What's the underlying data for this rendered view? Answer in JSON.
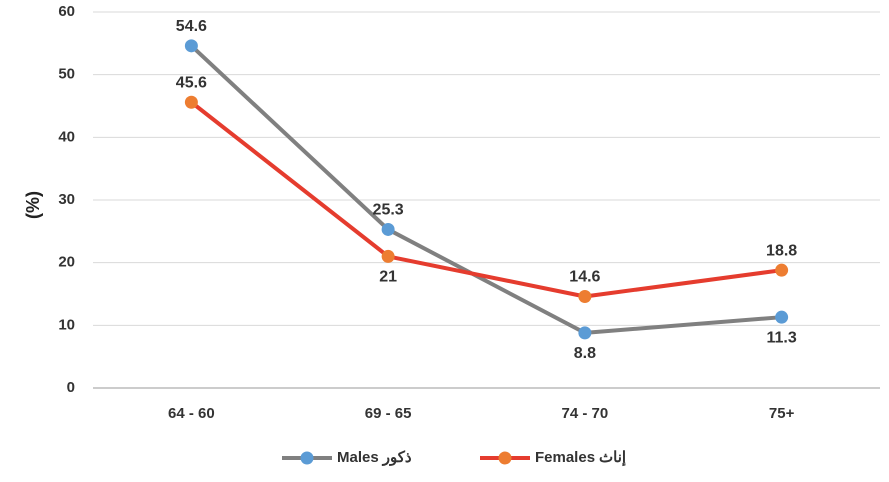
{
  "chart_data": {
    "type": "line",
    "title": "",
    "xlabel": "",
    "ylabel": "(%)",
    "ylim": [
      0,
      60
    ],
    "yticks": [
      0,
      10,
      20,
      30,
      40,
      50,
      60
    ],
    "grid": true,
    "legend_position": "bottom",
    "categories": [
      "64 - 60",
      "69 - 65",
      "74 - 70",
      "75+"
    ],
    "series": [
      {
        "name": "Males",
        "name_ar": "ذكور",
        "values": [
          54.6,
          25.3,
          8.8,
          11.3
        ],
        "line_color": "#808080",
        "marker_color": "#5B9BD5",
        "labels": [
          "54.6",
          "25.3",
          "8.8",
          "11.3"
        ],
        "label_positions": [
          "above",
          "above",
          "below",
          "below"
        ]
      },
      {
        "name": "Females",
        "name_ar": "إناث",
        "values": [
          45.6,
          21,
          14.6,
          18.8
        ],
        "line_color": "#E53C2E",
        "marker_color": "#ED7D31",
        "labels": [
          "45.6",
          "21",
          "14.6",
          "18.8"
        ],
        "label_positions": [
          "above",
          "below",
          "above",
          "above"
        ]
      }
    ]
  }
}
